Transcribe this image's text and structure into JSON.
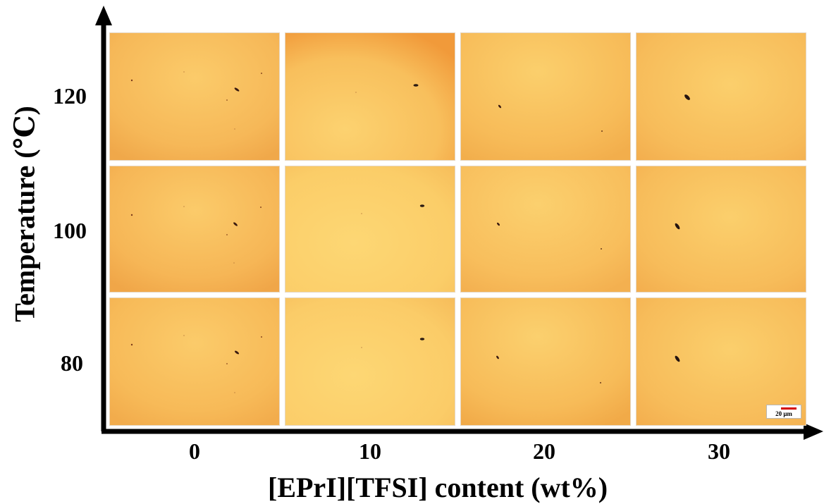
{
  "figure": {
    "ylabel": "Temperature (℃)",
    "xlabel": "[EPrI][TFSI] content (wt%)",
    "y_ticks": [
      "120",
      "100",
      "80"
    ],
    "x_ticks": [
      "0",
      "10",
      "20",
      "30"
    ],
    "scale_bar": "20 μm"
  },
  "grid": {
    "rows": [
      "120",
      "100",
      "80"
    ],
    "cols": [
      "0",
      "10",
      "20",
      "30"
    ],
    "description_per_panel": "optical micrograph, orange-yellow field with small dark particles"
  },
  "colors": {
    "axis": "#000000",
    "field_warm": "#f2a94a",
    "field_light": "#fcd470",
    "particle": "#2a1a12",
    "scale_bar": "#d40000"
  }
}
